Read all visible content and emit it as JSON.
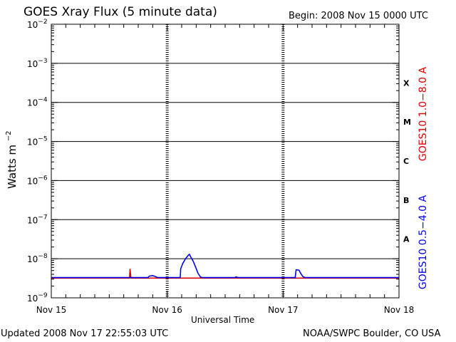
{
  "header": {
    "title": "GOES Xray Flux (5 minute data)",
    "begin": "Begin:  2008 Nov 15 0000 UTC"
  },
  "footer": {
    "updated": "Updated 2008 Nov 17 22:55:03 UTC",
    "source": "NOAA/SWPC Boulder, CO USA"
  },
  "chart_data": {
    "type": "line",
    "title": "GOES Xray Flux (5 minute data)",
    "xlabel": "Universal Time",
    "ylabel": "Watts m-2",
    "ylabel_main": "Watts m",
    "ylabel_sup": "−2",
    "yscale": "log",
    "ylim": [
      1e-09,
      0.01
    ],
    "xlim": [
      0,
      72
    ],
    "x_unit": "hours since 2008 Nov 15 0000 UTC",
    "x_ticks": [
      {
        "x": 0,
        "label": "Nov 15"
      },
      {
        "x": 24,
        "label": "Nov 16"
      },
      {
        "x": 48,
        "label": "Nov 17"
      },
      {
        "x": 72,
        "label": "Nov 18"
      }
    ],
    "y_ticks": [
      {
        "exp": -9,
        "base": "10",
        "sup": "−9"
      },
      {
        "exp": -8,
        "base": "10",
        "sup": "−8"
      },
      {
        "exp": -7,
        "base": "10",
        "sup": "−7"
      },
      {
        "exp": -6,
        "base": "10",
        "sup": "−6"
      },
      {
        "exp": -5,
        "base": "10",
        "sup": "−5"
      },
      {
        "exp": -4,
        "base": "10",
        "sup": "−4"
      },
      {
        "exp": -3,
        "base": "10",
        "sup": "−3"
      },
      {
        "exp": -2,
        "base": "10",
        "sup": "−2"
      }
    ],
    "flare_classes": [
      {
        "label": "A",
        "exp": -8
      },
      {
        "label": "B",
        "exp": -7
      },
      {
        "label": "C",
        "exp": -6
      },
      {
        "label": "M",
        "exp": -5
      },
      {
        "label": "X",
        "exp": -4
      }
    ],
    "hgrid_exponents": [
      -8,
      -7,
      -6,
      -5,
      -4,
      -3
    ],
    "vgrid_days": [
      24,
      48
    ],
    "series": [
      {
        "name": "GOES10 1.0−8.0 A",
        "color": "#dd0000",
        "points": [
          [
            0,
            3.2e-09
          ],
          [
            16.2,
            3.2e-09
          ],
          [
            16.3,
            5.5e-09
          ],
          [
            16.5,
            3.2e-09
          ],
          [
            22.5,
            3.2e-09
          ],
          [
            34.0,
            3.2e-09
          ],
          [
            72,
            3.2e-09
          ]
        ]
      },
      {
        "name": "GOES10 0.5−4.0 A",
        "color": "#0000ee",
        "points": [
          [
            0,
            3.3e-09
          ],
          [
            20.0,
            3.3e-09
          ],
          [
            20.3,
            3.6e-09
          ],
          [
            21.0,
            3.7e-09
          ],
          [
            21.6,
            3.5e-09
          ],
          [
            22.0,
            3.3e-09
          ],
          [
            26.5,
            3.3e-09
          ],
          [
            26.7,
            3.4e-09
          ],
          [
            26.8,
            5.5e-09
          ],
          [
            27.2,
            7.5e-09
          ],
          [
            27.8,
            1e-08
          ],
          [
            28.3,
            1.2e-08
          ],
          [
            28.6,
            1.3e-08
          ],
          [
            28.9,
            1.1e-08
          ],
          [
            29.4,
            8.5e-09
          ],
          [
            29.9,
            6e-09
          ],
          [
            30.4,
            4.2e-09
          ],
          [
            30.9,
            3.4e-09
          ],
          [
            31.3,
            3.3e-09
          ],
          [
            38.0,
            3.3e-09
          ],
          [
            38.3,
            3.45e-09
          ],
          [
            38.6,
            3.3e-09
          ],
          [
            50.5,
            3.3e-09
          ],
          [
            50.7,
            5.2e-09
          ],
          [
            51.3,
            5.1e-09
          ],
          [
            51.6,
            4.3e-09
          ],
          [
            52.1,
            3.5e-09
          ],
          [
            52.6,
            3.3e-09
          ],
          [
            72,
            3.3e-09
          ]
        ]
      }
    ],
    "legend_right": [
      {
        "text": "GOES10 1.0−8.0 A",
        "color": "#dd0000"
      },
      {
        "text": "GOES10 0.5−4.0 A",
        "color": "#0000ee"
      }
    ]
  }
}
